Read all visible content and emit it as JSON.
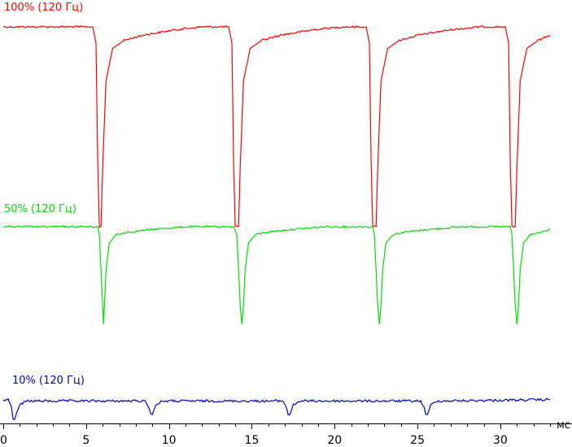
{
  "chart_data": {
    "type": "line",
    "title": "",
    "xlabel": "мс",
    "ylabel": "",
    "xlim": [
      0,
      35
    ],
    "ylim": [
      0,
      1.2
    ],
    "x_ticks": [
      0,
      5,
      10,
      15,
      20,
      25,
      30
    ],
    "x_tick_labels": [
      "0",
      "5",
      "10",
      "15",
      "20",
      "25",
      "30"
    ],
    "x_minor_tick_step": 1,
    "grid": false,
    "legend": "inline-left",
    "period_ms": 8.33,
    "series": [
      {
        "name": "100% (120 Гц)",
        "color": "#ff0000",
        "x": [
          0,
          5.4,
          5.6,
          5.7,
          5.8,
          5.9,
          6.0,
          6.2,
          6.6,
          7.3,
          8.5,
          10.5,
          12.0,
          13.6,
          13.8,
          13.9,
          14.0,
          14.1,
          14.2,
          14.3,
          14.5,
          14.9,
          15.6,
          16.8,
          18.8,
          20.5,
          21.9,
          22.1,
          22.2,
          22.3,
          22.4,
          22.5,
          22.6,
          22.8,
          23.2,
          23.9,
          25.1,
          27.1,
          28.8,
          30.3,
          30.5,
          30.6,
          30.7,
          30.8,
          30.9,
          31.0,
          31.2,
          31.6,
          32.3,
          33.0
        ],
        "y": [
          1.1,
          1.1,
          1.04,
          0.6,
          0.36,
          0.36,
          0.58,
          0.9,
          1.02,
          1.05,
          1.07,
          1.09,
          1.1,
          1.1,
          1.04,
          0.6,
          0.36,
          0.36,
          0.36,
          0.58,
          0.9,
          1.02,
          1.05,
          1.07,
          1.09,
          1.1,
          1.1,
          1.04,
          0.6,
          0.36,
          0.36,
          0.36,
          0.58,
          0.9,
          1.02,
          1.05,
          1.07,
          1.09,
          1.1,
          1.1,
          1.04,
          0.6,
          0.36,
          0.36,
          0.36,
          0.58,
          0.9,
          1.02,
          1.05,
          1.07
        ]
      },
      {
        "name": "50% (120 Гц)",
        "color": "#00e000",
        "x": [
          0,
          5.7,
          5.8,
          5.9,
          6.0,
          6.05,
          6.1,
          6.2,
          6.4,
          6.8,
          7.5,
          9.0,
          11.0,
          13.9,
          14.1,
          14.2,
          14.3,
          14.4,
          14.5,
          14.6,
          14.8,
          15.2,
          15.9,
          17.4,
          19.4,
          22.3,
          22.4,
          22.5,
          22.6,
          22.7,
          22.8,
          22.9,
          23.1,
          23.5,
          24.2,
          25.7,
          27.7,
          30.6,
          30.7,
          30.8,
          30.9,
          31.0,
          31.1,
          31.2,
          31.4,
          31.8,
          32.5,
          33.0
        ],
        "y": [
          0.36,
          0.36,
          0.33,
          0.2,
          0.07,
          0.0,
          0.06,
          0.2,
          0.3,
          0.33,
          0.34,
          0.35,
          0.36,
          0.36,
          0.33,
          0.2,
          0.07,
          0.0,
          0.07,
          0.2,
          0.3,
          0.33,
          0.34,
          0.35,
          0.36,
          0.36,
          0.33,
          0.2,
          0.07,
          0.0,
          0.07,
          0.2,
          0.3,
          0.33,
          0.34,
          0.35,
          0.36,
          0.36,
          0.33,
          0.2,
          0.07,
          0.0,
          0.07,
          0.2,
          0.3,
          0.33,
          0.34,
          0.35
        ]
      },
      {
        "name": "10% (120 Гц)",
        "color": "#0000cc",
        "x": [
          0,
          0.3,
          0.5,
          0.6,
          0.7,
          0.8,
          1.0,
          1.4,
          8.6,
          8.8,
          8.9,
          9.0,
          9.2,
          9.6,
          16.9,
          17.1,
          17.2,
          17.3,
          17.5,
          17.9,
          25.2,
          25.4,
          25.5,
          25.6,
          25.8,
          26.2,
          33.0
        ],
        "y": [
          -0.28,
          -0.28,
          -0.31,
          -0.35,
          -0.355,
          -0.33,
          -0.3,
          -0.285,
          -0.285,
          -0.31,
          -0.335,
          -0.335,
          -0.3,
          -0.285,
          -0.285,
          -0.31,
          -0.335,
          -0.335,
          -0.3,
          -0.285,
          -0.285,
          -0.31,
          -0.335,
          -0.335,
          -0.3,
          -0.285,
          -0.28
        ]
      }
    ]
  }
}
